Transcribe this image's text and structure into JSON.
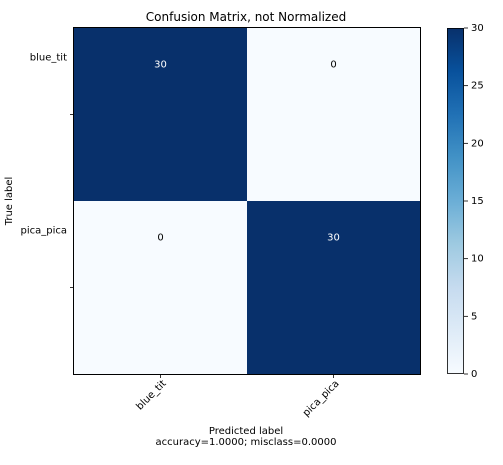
{
  "chart_data": {
    "type": "heatmap",
    "title": "Confusion Matrix, not Normalized",
    "xlabel": "Predicted label",
    "xlabel_sub": "accuracy=1.0000; misclass=0.0000",
    "ylabel": "True label",
    "x_categories": [
      "blue_tit",
      "pica_pica"
    ],
    "y_categories": [
      "blue_tit",
      "pica_pica"
    ],
    "matrix": [
      [
        30,
        0
      ],
      [
        0,
        30
      ]
    ],
    "colorbar": {
      "min": 0,
      "max": 30,
      "ticks": [
        "0",
        "5",
        "10",
        "15",
        "20",
        "25",
        "30"
      ],
      "colormap": "Blues",
      "low_color": "#f7fbff",
      "high_color": "#08306b"
    },
    "annotation_color_dark_cell": "#ffffff",
    "annotation_color_light_cell": "#000000"
  }
}
